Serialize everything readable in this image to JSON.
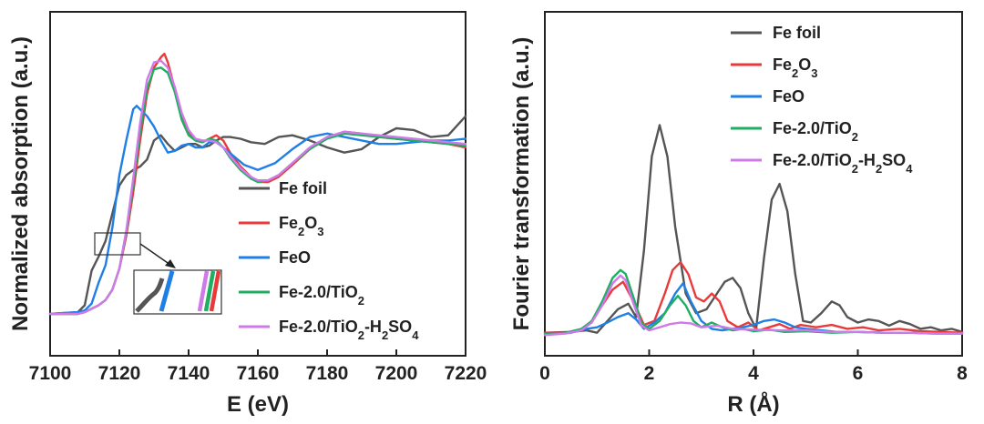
{
  "chart_data": [
    {
      "type": "line",
      "xlabel": "E (eV)",
      "ylabel": "Normalized absorption (a.u.)",
      "xlim": [
        7100,
        7220
      ],
      "ylim": [
        0,
        1.6
      ],
      "xticks": [
        "7100",
        "7120",
        "7140",
        "7160",
        "7180",
        "7200",
        "7220"
      ],
      "legend_position": "lower-right",
      "series": [
        {
          "name": "Fe foil",
          "label_main": "Fe foil",
          "color": "#555555",
          "x": [
            7100,
            7108,
            7110,
            7111,
            7112,
            7114,
            7116,
            7118,
            7120,
            7122,
            7124,
            7126,
            7128,
            7130,
            7132,
            7134,
            7136,
            7138,
            7140,
            7142,
            7144,
            7146,
            7148,
            7150,
            7152,
            7155,
            7158,
            7162,
            7166,
            7170,
            7175,
            7180,
            7185,
            7190,
            7195,
            7200,
            7205,
            7210,
            7215,
            7220
          ],
          "y": [
            0.0,
            0.01,
            0.05,
            0.15,
            0.25,
            0.33,
            0.42,
            0.58,
            0.74,
            0.8,
            0.83,
            0.85,
            0.89,
            1.0,
            1.03,
            0.98,
            0.94,
            0.96,
            0.98,
            0.98,
            0.96,
            0.97,
            1.0,
            1.02,
            1.02,
            1.01,
            0.99,
            0.98,
            1.02,
            1.03,
            1.0,
            0.96,
            0.93,
            0.95,
            1.02,
            1.07,
            1.06,
            1.02,
            1.03,
            1.14
          ]
        },
        {
          "name": "Fe2O3",
          "label_main": "Fe",
          "sub1": "2",
          "label_mid": "O",
          "sub2": "3",
          "color": "#e83a3a",
          "x": [
            7100,
            7108,
            7110,
            7112,
            7114,
            7116,
            7118,
            7120,
            7122,
            7124,
            7126,
            7128,
            7130,
            7132,
            7133,
            7134,
            7136,
            7138,
            7140,
            7142,
            7144,
            7146,
            7148,
            7150,
            7152,
            7155,
            7158,
            7160,
            7163,
            7166,
            7170,
            7175,
            7180,
            7185,
            7190,
            7195,
            7200,
            7205,
            7210,
            7215,
            7220
          ],
          "y": [
            0.0,
            0.0,
            0.01,
            0.03,
            0.05,
            0.08,
            0.14,
            0.26,
            0.45,
            0.7,
            1.0,
            1.27,
            1.42,
            1.48,
            1.5,
            1.45,
            1.3,
            1.14,
            1.05,
            1.0,
            0.99,
            1.01,
            1.03,
            1.0,
            0.93,
            0.85,
            0.79,
            0.76,
            0.76,
            0.79,
            0.86,
            0.95,
            1.02,
            1.05,
            1.04,
            1.02,
            1.01,
            1.0,
            0.99,
            0.98,
            0.96
          ]
        },
        {
          "name": "FeO",
          "label_main": "FeO",
          "color": "#1e7fe6",
          "x": [
            7100,
            7108,
            7110,
            7112,
            7114,
            7116,
            7118,
            7120,
            7122,
            7124,
            7125,
            7126,
            7128,
            7130,
            7132,
            7134,
            7136,
            7138,
            7140,
            7142,
            7144,
            7146,
            7148,
            7150,
            7153,
            7156,
            7160,
            7165,
            7170,
            7175,
            7180,
            7185,
            7190,
            7195,
            7200,
            7205,
            7210,
            7215,
            7220
          ],
          "y": [
            0.0,
            0.01,
            0.02,
            0.06,
            0.18,
            0.28,
            0.5,
            0.8,
            1.0,
            1.18,
            1.2,
            1.18,
            1.14,
            1.08,
            1.0,
            0.93,
            0.94,
            0.97,
            0.98,
            0.96,
            0.96,
            0.99,
            0.99,
            0.96,
            0.91,
            0.86,
            0.83,
            0.87,
            0.95,
            1.02,
            1.04,
            1.02,
            1.0,
            0.98,
            0.98,
            0.99,
            1.0,
            1.0,
            1.01
          ]
        },
        {
          "name": "Fe-2.0/TiO2",
          "label_main": "Fe-2.0/TiO",
          "sub1": "2",
          "color": "#1fae62",
          "x": [
            7100,
            7108,
            7110,
            7112,
            7114,
            7116,
            7118,
            7120,
            7122,
            7124,
            7126,
            7128,
            7130,
            7132,
            7134,
            7136,
            7138,
            7140,
            7142,
            7144,
            7146,
            7148,
            7150,
            7152,
            7155,
            7158,
            7160,
            7163,
            7166,
            7170,
            7175,
            7180,
            7185,
            7190,
            7195,
            7200,
            7205,
            7210,
            7215,
            7220
          ],
          "y": [
            0.0,
            0.0,
            0.01,
            0.03,
            0.05,
            0.08,
            0.14,
            0.26,
            0.47,
            0.75,
            1.05,
            1.3,
            1.41,
            1.42,
            1.39,
            1.28,
            1.12,
            1.03,
            1.0,
            0.99,
            1.01,
            1.0,
            0.96,
            0.9,
            0.83,
            0.78,
            0.76,
            0.77,
            0.8,
            0.87,
            0.95,
            1.01,
            1.04,
            1.03,
            1.02,
            1.01,
            1.0,
            0.99,
            0.98,
            0.97
          ]
        },
        {
          "name": "Fe-2.0/TiO2-H2SO4",
          "label_main": "Fe-2.0/TiO",
          "sub1": "2",
          "label_mid": "-H",
          "sub2": "2",
          "label_end": "SO",
          "sub3": "4",
          "color": "#cf7ae8",
          "x": [
            7100,
            7108,
            7110,
            7112,
            7114,
            7116,
            7118,
            7120,
            7122,
            7124,
            7126,
            7128,
            7130,
            7132,
            7134,
            7136,
            7138,
            7140,
            7142,
            7144,
            7146,
            7148,
            7150,
            7152,
            7155,
            7158,
            7160,
            7163,
            7166,
            7170,
            7175,
            7180,
            7185,
            7190,
            7195,
            7200,
            7205,
            7210,
            7215,
            7220
          ],
          "y": [
            0.0,
            0.0,
            0.01,
            0.03,
            0.05,
            0.08,
            0.14,
            0.26,
            0.48,
            0.78,
            1.1,
            1.35,
            1.45,
            1.46,
            1.42,
            1.31,
            1.16,
            1.06,
            1.01,
            1.0,
            1.0,
            0.99,
            0.96,
            0.91,
            0.84,
            0.79,
            0.77,
            0.77,
            0.8,
            0.87,
            0.96,
            1.02,
            1.05,
            1.04,
            1.03,
            1.02,
            1.01,
            1.0,
            0.99,
            0.98
          ]
        }
      ],
      "annotations": [
        {
          "type": "inset",
          "description": "zoom box near the absorption edge with arrow to magnified inset"
        }
      ]
    },
    {
      "type": "line",
      "xlabel": "R (Å)",
      "ylabel": "Fourier transformation (a.u.)",
      "xlim": [
        0,
        8
      ],
      "ylim": [
        0,
        3.6
      ],
      "xticks": [
        "0",
        "2",
        "4",
        "6",
        "8"
      ],
      "legend_position": "top-right",
      "series": [
        {
          "name": "Fe foil",
          "label_main": "Fe foil",
          "color": "#555555",
          "x": [
            0,
            0.5,
            0.8,
            1.0,
            1.2,
            1.4,
            1.6,
            1.75,
            1.9,
            2.05,
            2.2,
            2.35,
            2.5,
            2.7,
            2.9,
            3.1,
            3.3,
            3.45,
            3.6,
            3.75,
            3.9,
            4.05,
            4.2,
            4.35,
            4.5,
            4.65,
            4.8,
            4.95,
            5.1,
            5.3,
            5.5,
            5.65,
            5.8,
            6.0,
            6.2,
            6.4,
            6.6,
            6.8,
            7.0,
            7.2,
            7.4,
            7.6,
            7.8,
            8.0
          ],
          "y": [
            0.05,
            0.06,
            0.08,
            0.05,
            0.2,
            0.35,
            0.42,
            0.25,
            1.1,
            2.3,
            2.7,
            2.3,
            1.4,
            0.55,
            0.3,
            0.35,
            0.55,
            0.7,
            0.75,
            0.62,
            0.3,
            0.1,
            1.0,
            1.75,
            1.95,
            1.6,
            0.8,
            0.2,
            0.18,
            0.3,
            0.45,
            0.4,
            0.25,
            0.18,
            0.22,
            0.2,
            0.14,
            0.2,
            0.16,
            0.1,
            0.12,
            0.08,
            0.1,
            0.06
          ]
        },
        {
          "name": "Fe2O3",
          "label_main": "Fe",
          "sub1": "2",
          "label_mid": "O",
          "sub2": "3",
          "color": "#e83a3a",
          "x": [
            0,
            0.4,
            0.7,
            0.9,
            1.1,
            1.3,
            1.5,
            1.7,
            1.9,
            2.1,
            2.3,
            2.45,
            2.6,
            2.75,
            2.9,
            3.05,
            3.2,
            3.35,
            3.5,
            3.7,
            3.9,
            4.1,
            4.3,
            4.5,
            4.7,
            4.9,
            5.2,
            5.5,
            5.8,
            6.1,
            6.4,
            6.8,
            7.2,
            7.6,
            8.0
          ],
          "y": [
            0.05,
            0.05,
            0.08,
            0.2,
            0.4,
            0.6,
            0.7,
            0.45,
            0.15,
            0.2,
            0.55,
            0.85,
            0.95,
            0.8,
            0.5,
            0.45,
            0.55,
            0.45,
            0.2,
            0.12,
            0.18,
            0.08,
            0.12,
            0.16,
            0.1,
            0.15,
            0.12,
            0.15,
            0.1,
            0.12,
            0.08,
            0.1,
            0.07,
            0.06,
            0.05
          ]
        },
        {
          "name": "FeO",
          "label_main": "FeO",
          "color": "#1e7fe6",
          "x": [
            0,
            0.5,
            0.8,
            1.0,
            1.2,
            1.4,
            1.6,
            1.75,
            1.9,
            2.1,
            2.3,
            2.5,
            2.65,
            2.8,
            3.0,
            3.2,
            3.4,
            3.6,
            3.8,
            4.0,
            4.2,
            4.4,
            4.6,
            4.8,
            5.0,
            5.3,
            5.6,
            6.0,
            6.5,
            7.0,
            7.5,
            8.0
          ],
          "y": [
            0.03,
            0.05,
            0.1,
            0.12,
            0.18,
            0.25,
            0.3,
            0.22,
            0.1,
            0.18,
            0.3,
            0.55,
            0.68,
            0.45,
            0.2,
            0.1,
            0.08,
            0.1,
            0.12,
            0.15,
            0.2,
            0.22,
            0.18,
            0.12,
            0.1,
            0.08,
            0.06,
            0.06,
            0.05,
            0.05,
            0.04,
            0.04
          ]
        },
        {
          "name": "Fe-2.0/TiO2",
          "label_main": "Fe-2.0/TiO",
          "sub1": "2",
          "color": "#1fae62",
          "x": [
            0,
            0.4,
            0.7,
            0.9,
            1.1,
            1.3,
            1.45,
            1.55,
            1.7,
            1.85,
            2.0,
            2.2,
            2.4,
            2.55,
            2.7,
            2.85,
            3.0,
            3.2,
            3.4,
            3.6,
            3.8,
            4.0,
            4.3,
            4.6,
            5.0,
            5.5,
            6.0,
            6.5,
            7.0,
            7.5,
            8.0
          ],
          "y": [
            0.03,
            0.05,
            0.1,
            0.2,
            0.45,
            0.75,
            0.85,
            0.8,
            0.5,
            0.18,
            0.1,
            0.2,
            0.4,
            0.52,
            0.4,
            0.2,
            0.12,
            0.18,
            0.12,
            0.08,
            0.1,
            0.07,
            0.09,
            0.06,
            0.07,
            0.05,
            0.06,
            0.05,
            0.05,
            0.04,
            0.04
          ]
        },
        {
          "name": "Fe-2.0/TiO2-H2SO4",
          "label_main": "Fe-2.0/TiO",
          "sub1": "2",
          "label_mid": "-H",
          "sub2": "2",
          "label_end": "SO",
          "sub3": "4",
          "color": "#cf7ae8",
          "x": [
            0,
            0.4,
            0.7,
            0.9,
            1.1,
            1.3,
            1.45,
            1.55,
            1.7,
            1.85,
            2.0,
            2.2,
            2.4,
            2.6,
            2.8,
            3.0,
            3.3,
            3.6,
            4.0,
            4.5,
            5.0,
            5.5,
            6.0,
            6.5,
            7.0,
            7.5,
            8.0
          ],
          "y": [
            0.02,
            0.04,
            0.08,
            0.18,
            0.4,
            0.68,
            0.78,
            0.72,
            0.42,
            0.14,
            0.08,
            0.12,
            0.16,
            0.18,
            0.17,
            0.12,
            0.14,
            0.1,
            0.09,
            0.08,
            0.08,
            0.06,
            0.06,
            0.05,
            0.05,
            0.04,
            0.04
          ]
        }
      ]
    }
  ]
}
